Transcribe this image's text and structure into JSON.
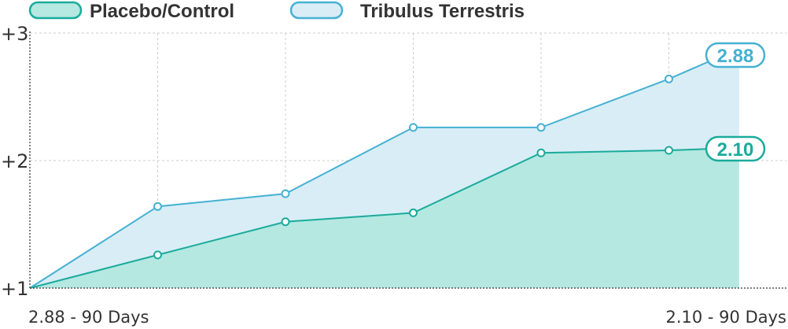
{
  "colors": {
    "placebo_line": "#1aab9b",
    "placebo_fill": "#b4e8e1",
    "tribulus_line": "#45b1d3",
    "tribulus_fill": "#d9edf6",
    "grid": "#cccccc",
    "axis": "#555555",
    "text": "#333333"
  },
  "legend": {
    "placebo": "Placebo/Control",
    "tribulus": "Tribulus Terrestris"
  },
  "badges": {
    "tribulus": "2.88",
    "placebo": "2.10"
  },
  "x_labels": {
    "start": "2.88 - 90 Days",
    "end": "2.10 - 90 Days"
  },
  "chart_data": {
    "type": "area",
    "x": [
      0,
      1,
      2,
      3,
      4,
      5,
      5.55
    ],
    "ylim": [
      1,
      3
    ],
    "yticks": [
      1,
      2,
      3
    ],
    "ytick_labels": [
      "+1",
      "+2",
      "+3"
    ],
    "grid": true,
    "legend_position": "top",
    "series": [
      {
        "name": "Tribulus Terrestris",
        "values": [
          1.0,
          1.64,
          1.74,
          2.26,
          2.26,
          2.64,
          2.88
        ]
      },
      {
        "name": "Placebo/Control",
        "values": [
          1.0,
          1.26,
          1.52,
          1.59,
          2.06,
          2.08,
          2.1
        ]
      }
    ]
  }
}
